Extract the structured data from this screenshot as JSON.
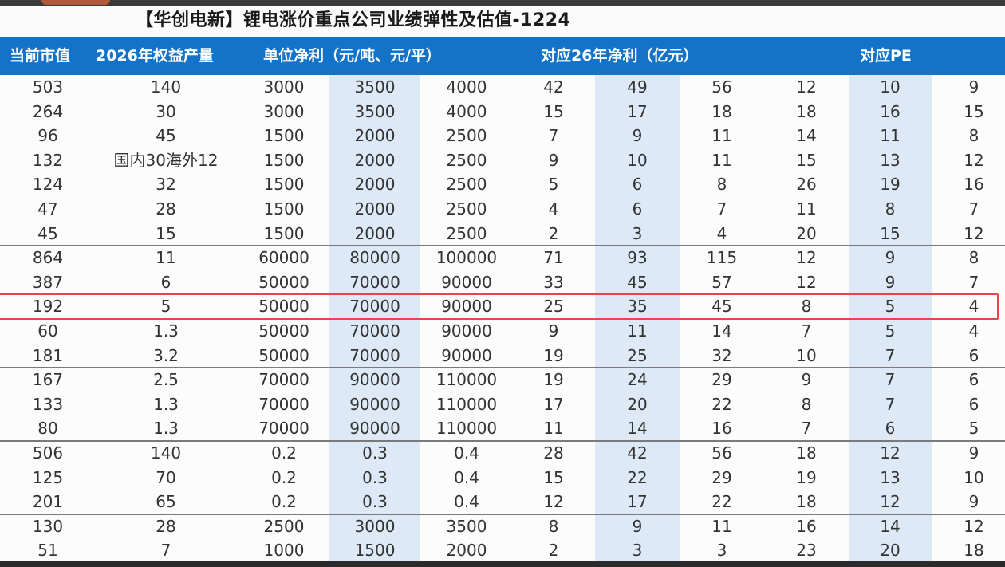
{
  "title": "【华创电新】锂电涨价重点公司业绩弹性及估值-1224",
  "headers": {
    "market_cap": "当前市值",
    "capacity": "2026年权益产量",
    "unit_profit": "单位净利（元/吨、元/平）",
    "profit_26": "对应26年净利（亿元）",
    "pe": "对应PE"
  },
  "rows": [
    [
      "503",
      "140",
      "3000",
      "3500",
      "4000",
      "42",
      "49",
      "56",
      "12",
      "10",
      "9"
    ],
    [
      "264",
      "30",
      "3000",
      "3500",
      "4000",
      "15",
      "17",
      "18",
      "18",
      "16",
      "15"
    ],
    [
      "96",
      "45",
      "1500",
      "2000",
      "2500",
      "7",
      "9",
      "11",
      "14",
      "11",
      "8"
    ],
    [
      "132",
      "国内30海外12",
      "1500",
      "2000",
      "2500",
      "9",
      "10",
      "11",
      "15",
      "13",
      "12"
    ],
    [
      "124",
      "32",
      "1500",
      "2000",
      "2500",
      "5",
      "6",
      "8",
      "26",
      "19",
      "16"
    ],
    [
      "47",
      "28",
      "1500",
      "2000",
      "2500",
      "4",
      "6",
      "7",
      "11",
      "8",
      "7"
    ],
    [
      "45",
      "15",
      "1500",
      "2000",
      "2500",
      "2",
      "3",
      "4",
      "20",
      "15",
      "12"
    ],
    [
      "864",
      "11",
      "60000",
      "80000",
      "100000",
      "71",
      "93",
      "115",
      "12",
      "9",
      "8"
    ],
    [
      "387",
      "6",
      "50000",
      "70000",
      "90000",
      "33",
      "45",
      "57",
      "12",
      "9",
      "7"
    ],
    [
      "192",
      "5",
      "50000",
      "70000",
      "90000",
      "25",
      "35",
      "45",
      "8",
      "5",
      "4"
    ],
    [
      "60",
      "1.3",
      "50000",
      "70000",
      "90000",
      "9",
      "11",
      "14",
      "7",
      "5",
      "4"
    ],
    [
      "181",
      "3.2",
      "50000",
      "70000",
      "90000",
      "19",
      "25",
      "32",
      "10",
      "7",
      "6"
    ],
    [
      "167",
      "2.5",
      "70000",
      "90000",
      "110000",
      "19",
      "24",
      "29",
      "9",
      "7",
      "6"
    ],
    [
      "133",
      "1.3",
      "70000",
      "90000",
      "110000",
      "17",
      "20",
      "22",
      "8",
      "7",
      "6"
    ],
    [
      "80",
      "1.3",
      "70000",
      "90000",
      "110000",
      "11",
      "14",
      "16",
      "7",
      "6",
      "5"
    ],
    [
      "506",
      "140",
      "0.2",
      "0.3",
      "0.4",
      "28",
      "42",
      "56",
      "18",
      "12",
      "9"
    ],
    [
      "125",
      "70",
      "0.2",
      "0.3",
      "0.4",
      "15",
      "22",
      "29",
      "19",
      "13",
      "10"
    ],
    [
      "201",
      "65",
      "0.2",
      "0.3",
      "0.4",
      "12",
      "17",
      "22",
      "18",
      "12",
      "9"
    ],
    [
      "130",
      "28",
      "2500",
      "3000",
      "3500",
      "8",
      "9",
      "11",
      "16",
      "14",
      "12"
    ],
    [
      "51",
      "7",
      "1000",
      "1500",
      "2000",
      "2",
      "3",
      "3",
      "23",
      "20",
      "18"
    ]
  ],
  "highlighted_row_index": 9,
  "group_separators_after_rows": [
    6,
    11,
    14,
    17
  ],
  "colors": {
    "header_bg": "#1273c9",
    "stripe": "#dde9f6",
    "highlight_border": "#e8454a"
  }
}
